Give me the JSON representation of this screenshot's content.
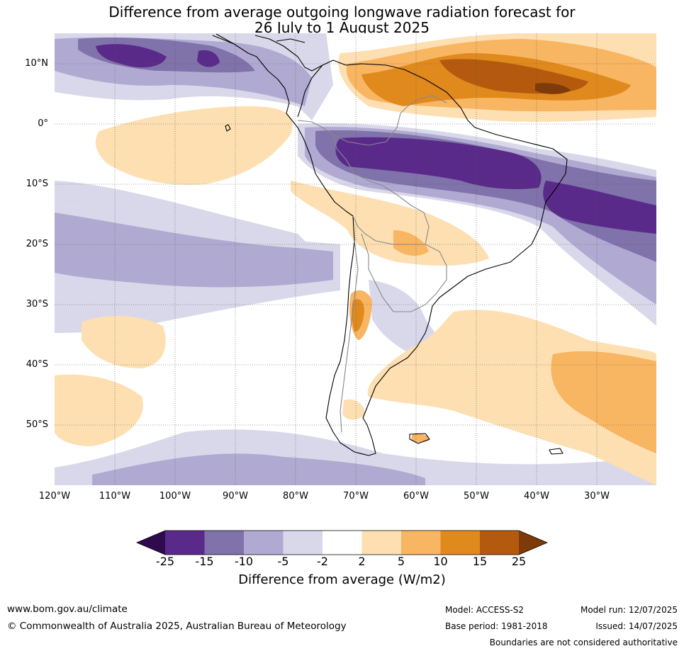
{
  "title_line1": "Difference from average outgoing longwave radiation forecast for",
  "title_line2": "26 July to 1 August 2025",
  "lat_labels": [
    "10°N",
    "0°",
    "10°S",
    "20°S",
    "30°S",
    "40°S",
    "50°S"
  ],
  "lon_labels": [
    "120°W",
    "110°W",
    "100°W",
    "90°W",
    "80°W",
    "70°W",
    "60°W",
    "50°W",
    "40°W",
    "30°W"
  ],
  "colorbar": {
    "labels": [
      "-25",
      "-15",
      "-10",
      "-5",
      "-2",
      "2",
      "5",
      "10",
      "15",
      "25"
    ],
    "colors": [
      "#5a2a8a",
      "#8072aa",
      "#b0aad2",
      "#d9d8ea",
      "#ffffff",
      "#fddfb2",
      "#f8b562",
      "#e08a1e",
      "#b45a0e"
    ],
    "under_color": "#2f0a4e",
    "over_color": "#7e3a08",
    "title": "Difference from average (W/m2)"
  },
  "footer": {
    "url": "www.bom.gov.au/climate",
    "copyright": "© Commonwealth of Australia 2025, Australian Bureau of Meteorology",
    "model": "Model: ACCESS-S2",
    "base_period": "Base period: 1981-2018",
    "model_run": "Model run: 12/07/2025",
    "issued": "Issued: 14/07/2025",
    "disclaimer": "Boundaries are not considered authoritative"
  }
}
